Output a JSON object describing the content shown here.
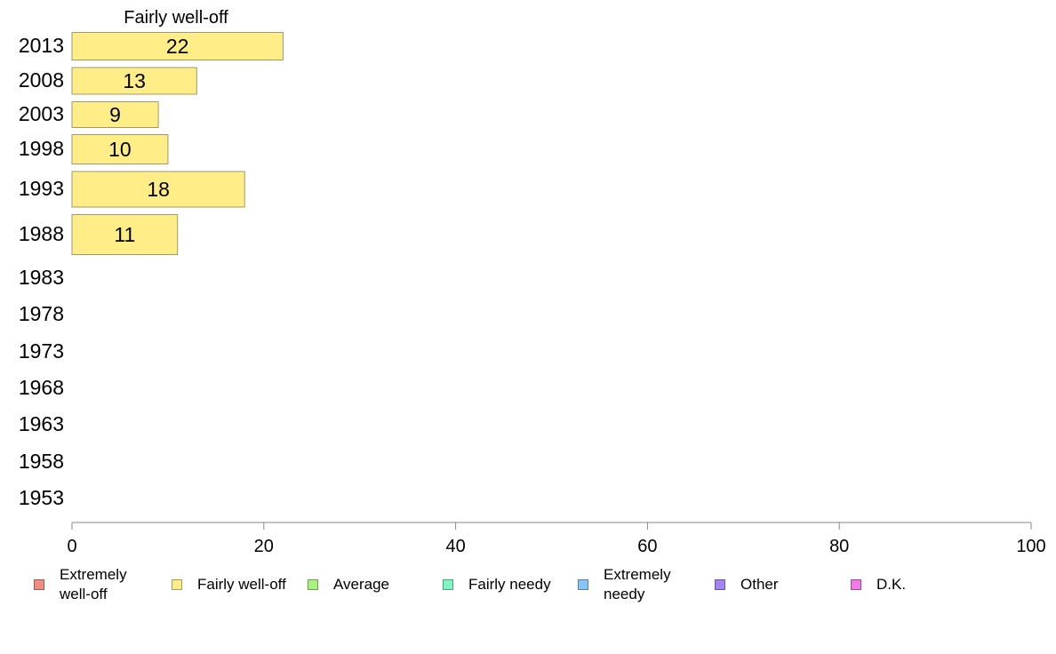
{
  "chart_data": {
    "type": "bar",
    "orientation": "horizontal",
    "title": "Fairly well-off",
    "categories": [
      "2013",
      "2008",
      "2003",
      "1998",
      "1993",
      "1988",
      "1983",
      "1978",
      "1973",
      "1968",
      "1963",
      "1958",
      "1953"
    ],
    "series": [
      {
        "name": "Fairly well-off",
        "color": "#ffee88",
        "values": [
          22,
          13,
          9,
          10,
          18,
          11,
          null,
          null,
          null,
          null,
          null,
          null,
          null
        ]
      }
    ],
    "data_labels": [
      "22",
      "13",
      "9",
      "10",
      "18",
      "11"
    ],
    "x_ticks": [
      "0",
      "20",
      "40",
      "60",
      "80",
      "100"
    ],
    "xlim": [
      0,
      100
    ],
    "grid": false,
    "legend_position": "bottom",
    "legend": [
      {
        "label": "Extremely\nwell-off",
        "color": "#f28b82"
      },
      {
        "label": "Fairly well-off",
        "color": "#ffee88"
      },
      {
        "label": "Average",
        "color": "#a6f57f"
      },
      {
        "label": "Fairly needy",
        "color": "#7ff5c4"
      },
      {
        "label": "Extremely\nneedy",
        "color": "#86c5f5"
      },
      {
        "label": "Other",
        "color": "#a285f0"
      },
      {
        "label": "D.K.",
        "color": "#f27ae6"
      }
    ]
  }
}
